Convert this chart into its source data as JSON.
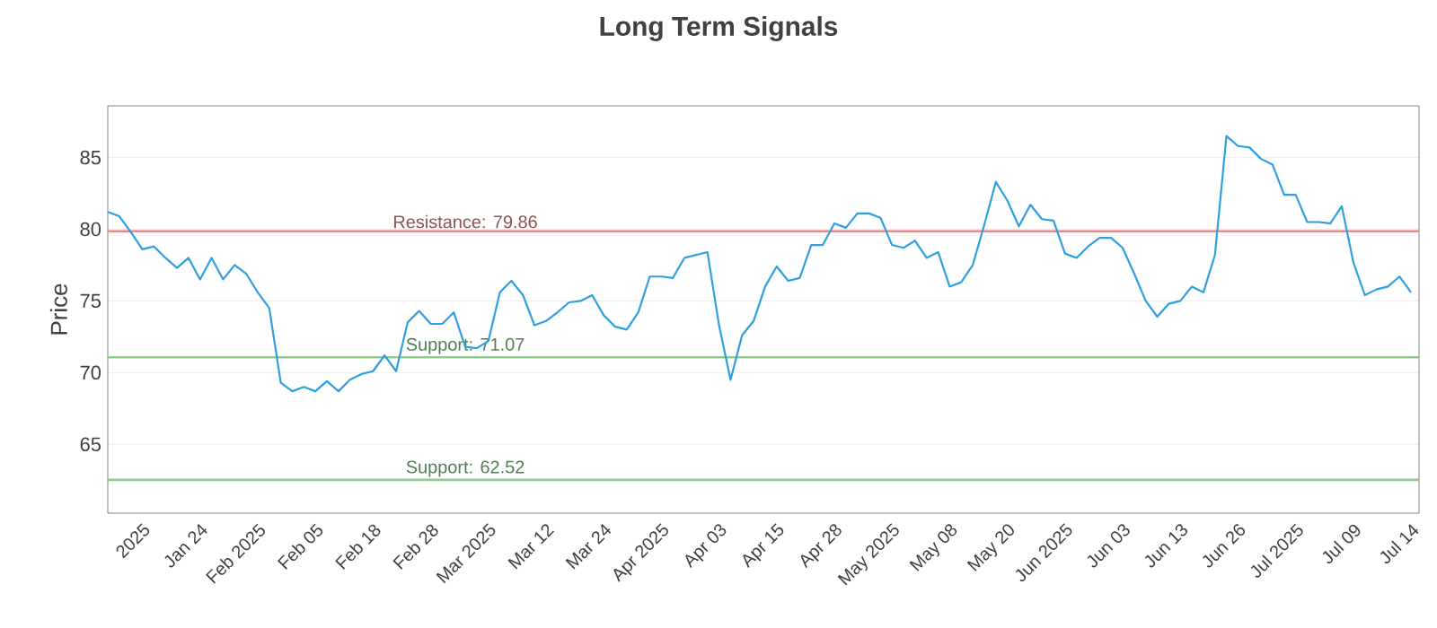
{
  "chart_data": {
    "type": "line",
    "title": "Long Term Signals",
    "ylabel": "Price",
    "categories": [
      null,
      null,
      null,
      "2025",
      null,
      null,
      null,
      null,
      "Jan 24",
      null,
      null,
      null,
      null,
      "Feb 2025",
      null,
      null,
      null,
      null,
      "Feb 05",
      null,
      null,
      null,
      null,
      "Feb 18",
      null,
      null,
      null,
      null,
      "Feb 28",
      null,
      null,
      null,
      null,
      "Mar 2025",
      null,
      null,
      null,
      null,
      "Mar 12",
      null,
      null,
      null,
      null,
      "Mar 24",
      null,
      null,
      null,
      null,
      "Apr 2025",
      null,
      null,
      null,
      null,
      "Apr 03",
      null,
      null,
      null,
      null,
      "Apr 15",
      null,
      null,
      null,
      null,
      "Apr 28",
      null,
      null,
      null,
      null,
      "May 2025",
      null,
      null,
      null,
      null,
      "May 08",
      null,
      null,
      null,
      null,
      "May 20",
      null,
      null,
      null,
      null,
      "Jun 2025",
      null,
      null,
      null,
      null,
      "Jun 03",
      null,
      null,
      null,
      null,
      "Jun 13",
      null,
      null,
      null,
      null,
      "Jun 26",
      null,
      null,
      null,
      null,
      "Jul 2025",
      null,
      null,
      null,
      null,
      "Jul 09",
      null,
      null,
      null,
      null,
      "Jul 14"
    ],
    "series": [
      {
        "color": "#2f9fe0",
        "values": [
          81.2,
          80.9,
          79.8,
          78.6,
          78.8,
          78.0,
          77.3,
          78.0,
          76.5,
          78.0,
          76.5,
          77.5,
          76.9,
          75.6,
          74.5,
          69.3,
          68.7,
          69.0,
          68.7,
          69.4,
          68.7,
          69.5,
          69.9,
          70.1,
          71.2,
          70.1,
          73.5,
          74.3,
          73.4,
          73.4,
          74.2,
          71.8,
          71.7,
          72.2,
          75.6,
          76.4,
          75.4,
          73.3,
          73.6,
          74.2,
          74.9,
          75.0,
          75.4,
          74.0,
          73.2,
          73.0,
          74.2,
          76.7,
          76.7,
          76.6,
          78.0,
          78.2,
          78.4,
          73.3,
          69.5,
          72.6,
          73.6,
          76.0,
          77.4,
          76.4,
          76.6,
          78.9,
          78.9,
          80.4,
          80.1,
          81.1,
          81.1,
          80.8,
          78.9,
          78.7,
          79.2,
          78.0,
          78.4,
          76.0,
          76.3,
          77.5,
          80.3,
          83.3,
          82.0,
          80.2,
          81.7,
          80.7,
          80.6,
          78.3,
          78.0,
          78.8,
          79.4,
          79.4,
          78.7,
          76.9,
          75.0,
          73.9,
          74.8,
          75.0,
          76.0,
          75.6,
          78.2,
          86.5,
          85.8,
          85.7,
          84.9,
          84.5,
          82.4,
          82.4,
          80.5,
          80.5,
          80.4,
          81.6,
          77.7,
          75.4,
          75.8,
          76.0,
          76.7,
          75.6
        ]
      }
    ],
    "ylim": [
      60.2,
      88.6
    ],
    "yticks": [
      65,
      70,
      75,
      80,
      85
    ],
    "grid": "y",
    "marker": "none",
    "line_style": "solid",
    "ref_lines": [
      {
        "axis": "y",
        "value": 79.86,
        "label": "Resistance: 79.86",
        "color": "#e88a8a"
      },
      {
        "axis": "y",
        "value": 71.07,
        "label": "Support: 71.07",
        "color": "#8ccf8c"
      },
      {
        "axis": "y",
        "value": 62.52,
        "label": "Support: 62.52",
        "color": "#8ccf8c"
      }
    ]
  }
}
